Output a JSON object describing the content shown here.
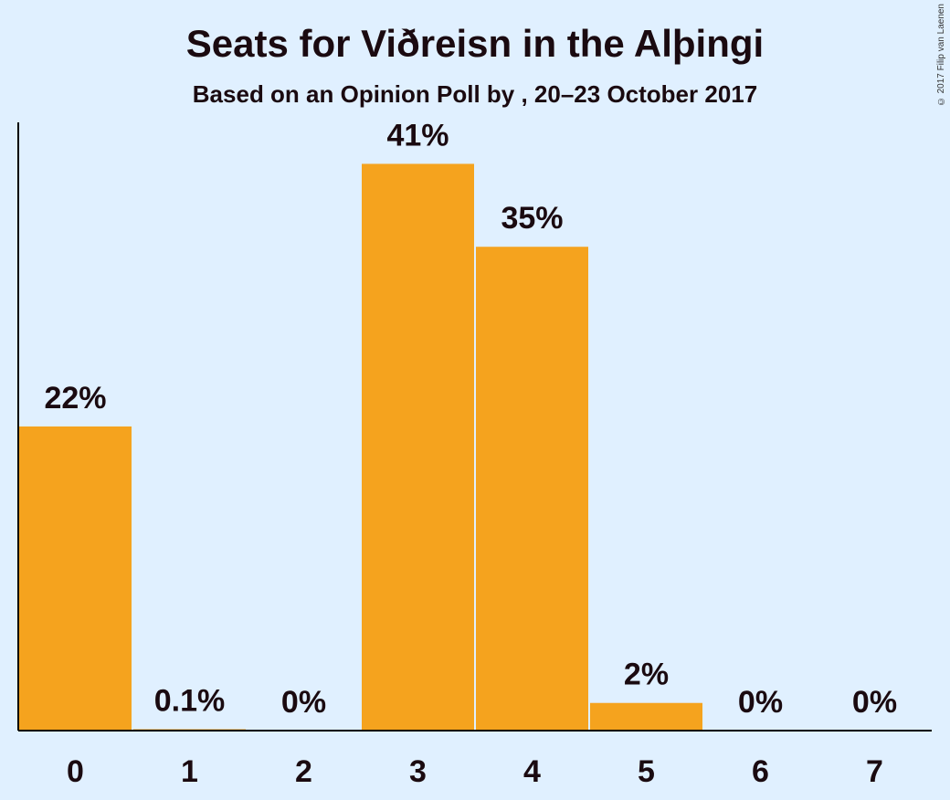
{
  "copyright": "© 2017 Filip van Laenen",
  "chart_data": {
    "type": "bar",
    "title": "Seats for Viðreisn in the Alþingi",
    "subtitle": "Based on an Opinion Poll by , 20–23 October 2017",
    "categories": [
      "0",
      "1",
      "2",
      "3",
      "4",
      "5",
      "6",
      "7"
    ],
    "values": [
      22,
      0.1,
      0,
      41,
      35,
      2,
      0,
      0
    ],
    "value_labels": [
      "22%",
      "0.1%",
      "0%",
      "41%",
      "35%",
      "2%",
      "0%",
      "0%"
    ],
    "xlabel": "",
    "ylabel": "",
    "ylim": [
      0,
      44
    ],
    "grid": false,
    "bar_color": "#f5a31e"
  }
}
